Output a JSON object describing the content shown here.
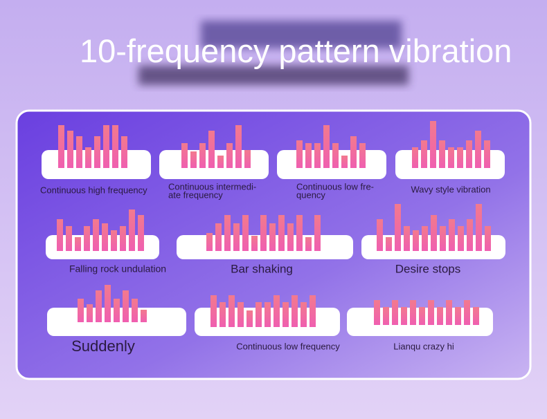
{
  "title": "10-frequency pattern vibration",
  "patterns": [
    {
      "label": [
        "Continuous high frequency"
      ]
    },
    {
      "label": [
        "Continuous intermedi-",
        "ate frequency"
      ]
    },
    {
      "label": [
        "Continuous low fre-",
        "quency"
      ]
    },
    {
      "label": [
        "Wavy style vibration"
      ]
    },
    {
      "label": [
        "Falling rock undulation"
      ]
    },
    {
      "label": [
        "Bar shaking"
      ]
    },
    {
      "label": [
        "Desire stops"
      ]
    },
    {
      "label": [
        "Suddenly"
      ]
    },
    {
      "label": [
        "Continuous low frequency"
      ]
    },
    {
      "label": [
        "Lianqu crazy hi"
      ]
    }
  ]
}
